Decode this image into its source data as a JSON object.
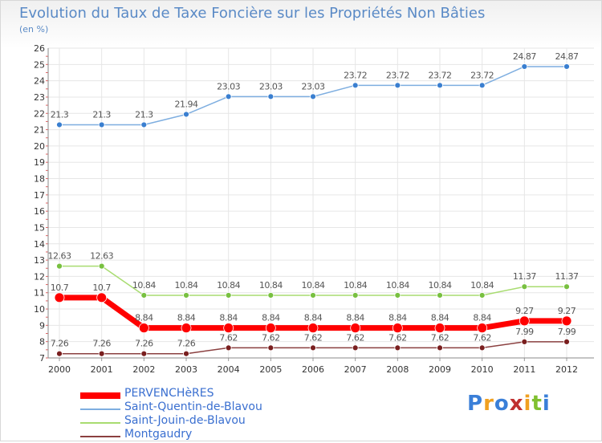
{
  "title": "Evolution du Taux de Taxe Foncière sur les Propriétés Non Bâties",
  "unit_label": "(en %)",
  "logo_text": "Proxiti",
  "logo_colors": [
    "#3a7fd8",
    "#f0a020",
    "#3a7fd8",
    "#c03030",
    "#f0a020",
    "#80c030",
    "#3a7fd8"
  ],
  "chart_data": {
    "type": "line",
    "title": "Evolution du Taux de Taxe Foncière sur les Propriétés Non Bâties",
    "ylabel": "(en %)",
    "xlabel": "",
    "x": [
      "2000",
      "2001",
      "2002",
      "2003",
      "2004",
      "2005",
      "2006",
      "2007",
      "2008",
      "2009",
      "2010",
      "2011",
      "2012"
    ],
    "ylim": [
      7,
      26
    ],
    "yticks": [
      "7",
      "8",
      "9",
      "10",
      "11",
      "12",
      "13",
      "14",
      "15",
      "16",
      "17",
      "18",
      "19",
      "20",
      "21",
      "22",
      "23",
      "24",
      "25",
      "26"
    ],
    "grid": true,
    "legend_position": "bottom-left",
    "series": [
      {
        "name": "PERVENCHèRES",
        "color": "#ff0000",
        "marker_color": "#ff0000",
        "values": [
          10.7,
          10.7,
          8.84,
          8.84,
          8.84,
          8.84,
          8.84,
          8.84,
          8.84,
          8.84,
          8.84,
          9.27,
          9.27
        ],
        "labels": [
          "10.7",
          "10.7",
          "8.84",
          "8.84",
          "8.84",
          "8.84",
          "8.84",
          "8.84",
          "8.84",
          "8.84",
          "8.84",
          "9.27",
          "9.27"
        ]
      },
      {
        "name": "Saint-Quentin-de-Blavou",
        "color": "#7eaee0",
        "marker_color": "#3a7fd0",
        "values": [
          21.3,
          21.3,
          21.3,
          21.94,
          23.03,
          23.03,
          23.03,
          23.72,
          23.72,
          23.72,
          23.72,
          24.87,
          24.87
        ],
        "labels": [
          "21.3",
          "21.3",
          "21.3",
          "21.94",
          "23.03",
          "23.03",
          "23.03",
          "23.72",
          "23.72",
          "23.72",
          "23.72",
          "24.87",
          "24.87"
        ]
      },
      {
        "name": "Saint-Jouin-de-Blavou",
        "color": "#a8dc70",
        "marker_color": "#78c040",
        "values": [
          12.63,
          12.63,
          10.84,
          10.84,
          10.84,
          10.84,
          10.84,
          10.84,
          10.84,
          10.84,
          10.84,
          11.37,
          11.37
        ],
        "labels": [
          "12.63",
          "12.63",
          "10.84",
          "10.84",
          "10.84",
          "10.84",
          "10.84",
          "10.84",
          "10.84",
          "10.84",
          "10.84",
          "11.37",
          "11.37"
        ]
      },
      {
        "name": "Montgaudry",
        "color": "#8b4040",
        "marker_color": "#7a1f1f",
        "values": [
          7.26,
          7.26,
          7.26,
          7.26,
          7.62,
          7.62,
          7.62,
          7.62,
          7.62,
          7.62,
          7.62,
          7.99,
          7.99
        ],
        "labels": [
          "7.26",
          "7.26",
          "7.26",
          "7.26",
          "7.62",
          "7.62",
          "7.62",
          "7.62",
          "7.62",
          "7.62",
          "7.62",
          "7.99",
          "7.99"
        ]
      }
    ]
  }
}
